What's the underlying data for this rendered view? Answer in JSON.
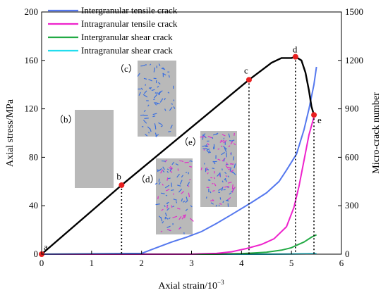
{
  "chart_data": {
    "type": "line",
    "xlabel": "Axial strain/10",
    "xlabel_exponent": "−3",
    "ylabel_left": "Axial stress/MPa",
    "ylabel_right": "Micro-crack number",
    "xlim": [
      0,
      6
    ],
    "ylim_left": [
      0,
      200
    ],
    "ylim_right": [
      0,
      1500
    ],
    "x_ticks": [
      "0",
      "1",
      "2",
      "3",
      "4",
      "5",
      "6"
    ],
    "y_ticks_left": [
      "0",
      "40",
      "80",
      "120",
      "160",
      "200"
    ],
    "y_ticks_right": [
      "0",
      "300",
      "600",
      "900",
      "1200",
      "1500"
    ],
    "grid": false,
    "legend_position": "top-left",
    "series": [
      {
        "name": "Stress",
        "axis": "left",
        "color": "#000000",
        "x": [
          0,
          1.6,
          4.15,
          4.6,
          4.8,
          5.0,
          5.08,
          5.2,
          5.28,
          5.35,
          5.4,
          5.45
        ],
        "y": [
          0,
          57,
          144,
          158,
          162,
          162,
          163,
          160,
          150,
          135,
          122,
          115
        ]
      },
      {
        "name": "Intergranular tensile crack",
        "axis": "right",
        "color": "#5578ee",
        "x": [
          0,
          2.0,
          2.3,
          2.6,
          2.9,
          3.2,
          3.5,
          3.8,
          4.2,
          4.5,
          4.75,
          4.9,
          5.1,
          5.25,
          5.35,
          5.45,
          5.5
        ],
        "y": [
          0,
          5,
          40,
          75,
          105,
          140,
          190,
          245,
          320,
          380,
          450,
          520,
          620,
          770,
          900,
          1050,
          1160
        ]
      },
      {
        "name": "Intragranular tensile crack",
        "axis": "right",
        "color": "#ee22cc",
        "x": [
          0,
          3.0,
          3.5,
          3.8,
          4.1,
          4.4,
          4.65,
          4.9,
          5.05,
          5.15,
          5.25,
          5.35,
          5.45,
          5.5
        ],
        "y": [
          0,
          0,
          5,
          15,
          35,
          60,
          95,
          170,
          290,
          420,
          580,
          740,
          850,
          870
        ]
      },
      {
        "name": "Intergranular shear crack",
        "axis": "right",
        "color": "#22aa44",
        "x": [
          0,
          3.5,
          4.0,
          4.5,
          4.8,
          5.0,
          5.1,
          5.25,
          5.4,
          5.5
        ],
        "y": [
          0,
          0,
          3,
          12,
          25,
          40,
          55,
          75,
          105,
          120
        ]
      },
      {
        "name": "Intragranular shear crack",
        "axis": "right",
        "color": "#22ddee",
        "x": [
          0,
          4.5,
          5.0,
          5.3,
          5.5
        ],
        "y": [
          0,
          0,
          1,
          2,
          3
        ]
      }
    ],
    "points": [
      {
        "label": "a",
        "x": 0,
        "y": 0
      },
      {
        "label": "b",
        "x": 1.6,
        "y": 57
      },
      {
        "label": "c",
        "x": 4.15,
        "y": 144
      },
      {
        "label": "d",
        "x": 5.08,
        "y": 163
      },
      {
        "label": "e",
        "x": 5.45,
        "y": 115
      }
    ],
    "insets": [
      {
        "label": "（b）",
        "cracks": 0
      },
      {
        "label": "（c）",
        "cracks": 70
      },
      {
        "label": "（d）",
        "cracks": 90
      },
      {
        "label": "（e）",
        "cracks": 120
      }
    ]
  }
}
